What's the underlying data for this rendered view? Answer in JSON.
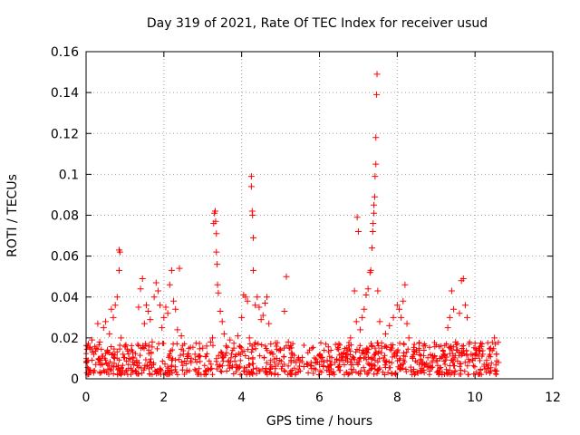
{
  "chart_data": {
    "type": "scatter",
    "title": "Day 319 of 2021, Rate Of TEC Index for receiver usud",
    "xlabel": "GPS time / hours",
    "ylabel": "ROTI / TECUs",
    "xlim": [
      0,
      12
    ],
    "ylim": [
      0,
      0.16
    ],
    "xticks": [
      "0",
      "2",
      "4",
      "6",
      "8",
      "10",
      "12"
    ],
    "yticks": [
      "0",
      "0.02",
      "0.04",
      "0.06",
      "0.08",
      "0.1",
      "0.12",
      "0.14",
      "0.16"
    ],
    "grid": true,
    "marker": "+",
    "color": "#ff0000",
    "series": [
      {
        "name": "ROTI",
        "points": [
          [
            0.05,
            0.009
          ],
          [
            0.1,
            0.015
          ],
          [
            0.15,
            0.019
          ],
          [
            0.2,
            0.012
          ],
          [
            0.25,
            0.007
          ],
          [
            0.3,
            0.027
          ],
          [
            0.35,
            0.018
          ],
          [
            0.4,
            0.011
          ],
          [
            0.45,
            0.025
          ],
          [
            0.5,
            0.028
          ],
          [
            0.55,
            0.014
          ],
          [
            0.6,
            0.022
          ],
          [
            0.65,
            0.034
          ],
          [
            0.7,
            0.03
          ],
          [
            0.75,
            0.036
          ],
          [
            0.8,
            0.04
          ],
          [
            0.85,
            0.063
          ],
          [
            0.87,
            0.062
          ],
          [
            0.85,
            0.053
          ],
          [
            0.9,
            0.02
          ],
          [
            0.95,
            0.012
          ],
          [
            1.0,
            0.016
          ],
          [
            1.1,
            0.01
          ],
          [
            1.2,
            0.013
          ],
          [
            1.3,
            0.009
          ],
          [
            1.35,
            0.035
          ],
          [
            1.4,
            0.044
          ],
          [
            1.45,
            0.049
          ],
          [
            1.5,
            0.027
          ],
          [
            1.55,
            0.036
          ],
          [
            1.6,
            0.033
          ],
          [
            1.65,
            0.029
          ],
          [
            1.7,
            0.018
          ],
          [
            1.75,
            0.04
          ],
          [
            1.8,
            0.047
          ],
          [
            1.85,
            0.043
          ],
          [
            1.9,
            0.036
          ],
          [
            1.95,
            0.025
          ],
          [
            2.0,
            0.03
          ],
          [
            2.05,
            0.035
          ],
          [
            2.1,
            0.032
          ],
          [
            2.15,
            0.046
          ],
          [
            2.2,
            0.053
          ],
          [
            2.25,
            0.038
          ],
          [
            2.3,
            0.034
          ],
          [
            2.35,
            0.024
          ],
          [
            2.4,
            0.054
          ],
          [
            2.45,
            0.021
          ],
          [
            2.5,
            0.012
          ],
          [
            2.6,
            0.01
          ],
          [
            2.7,
            0.008
          ],
          [
            2.8,
            0.012
          ],
          [
            2.9,
            0.011
          ],
          [
            3.0,
            0.015
          ],
          [
            3.1,
            0.016
          ],
          [
            3.2,
            0.018
          ],
          [
            3.25,
            0.02
          ],
          [
            3.28,
            0.076
          ],
          [
            3.3,
            0.081
          ],
          [
            3.32,
            0.082
          ],
          [
            3.33,
            0.077
          ],
          [
            3.35,
            0.071
          ],
          [
            3.35,
            0.062
          ],
          [
            3.37,
            0.056
          ],
          [
            3.38,
            0.046
          ],
          [
            3.4,
            0.042
          ],
          [
            3.45,
            0.033
          ],
          [
            3.5,
            0.028
          ],
          [
            3.55,
            0.022
          ],
          [
            3.6,
            0.016
          ],
          [
            3.7,
            0.019
          ],
          [
            3.8,
            0.015
          ],
          [
            3.9,
            0.021
          ],
          [
            4.0,
            0.03
          ],
          [
            4.05,
            0.041
          ],
          [
            4.1,
            0.04
          ],
          [
            4.15,
            0.038
          ],
          [
            4.2,
            0.02
          ],
          [
            4.25,
            0.099
          ],
          [
            4.25,
            0.094
          ],
          [
            4.27,
            0.082
          ],
          [
            4.28,
            0.08
          ],
          [
            4.3,
            0.069
          ],
          [
            4.3,
            0.053
          ],
          [
            4.35,
            0.036
          ],
          [
            4.4,
            0.04
          ],
          [
            4.45,
            0.035
          ],
          [
            4.5,
            0.029
          ],
          [
            4.55,
            0.031
          ],
          [
            4.6,
            0.037
          ],
          [
            4.65,
            0.04
          ],
          [
            4.7,
            0.027
          ],
          [
            4.75,
            0.017
          ],
          [
            4.8,
            0.012
          ],
          [
            4.9,
            0.01
          ],
          [
            5.0,
            0.014
          ],
          [
            5.1,
            0.033
          ],
          [
            5.15,
            0.05
          ],
          [
            5.2,
            0.018
          ],
          [
            5.3,
            0.012
          ],
          [
            5.4,
            0.008
          ],
          [
            5.5,
            0.009
          ],
          [
            5.6,
            0.006
          ],
          [
            5.7,
            0.007
          ],
          [
            5.8,
            0.005
          ],
          [
            5.9,
            0.008
          ],
          [
            6.0,
            0.007
          ],
          [
            6.1,
            0.006
          ],
          [
            6.2,
            0.009
          ],
          [
            6.3,
            0.007
          ],
          [
            6.4,
            0.008
          ],
          [
            6.5,
            0.006
          ],
          [
            6.6,
            0.009
          ],
          [
            6.7,
            0.012
          ],
          [
            6.8,
            0.02
          ],
          [
            6.9,
            0.043
          ],
          [
            6.95,
            0.028
          ],
          [
            6.97,
            0.079
          ],
          [
            7.0,
            0.072
          ],
          [
            7.05,
            0.024
          ],
          [
            7.1,
            0.03
          ],
          [
            7.15,
            0.034
          ],
          [
            7.2,
            0.041
          ],
          [
            7.25,
            0.044
          ],
          [
            7.3,
            0.052
          ],
          [
            7.32,
            0.053
          ],
          [
            7.35,
            0.064
          ],
          [
            7.37,
            0.072
          ],
          [
            7.38,
            0.076
          ],
          [
            7.4,
            0.081
          ],
          [
            7.4,
            0.085
          ],
          [
            7.42,
            0.089
          ],
          [
            7.43,
            0.099
          ],
          [
            7.45,
            0.105
          ],
          [
            7.45,
            0.118
          ],
          [
            7.47,
            0.139
          ],
          [
            7.48,
            0.149
          ],
          [
            7.5,
            0.043
          ],
          [
            7.55,
            0.028
          ],
          [
            7.6,
            0.015
          ],
          [
            7.7,
            0.022
          ],
          [
            7.8,
            0.026
          ],
          [
            7.9,
            0.03
          ],
          [
            8.0,
            0.036
          ],
          [
            8.05,
            0.034
          ],
          [
            8.1,
            0.03
          ],
          [
            8.15,
            0.038
          ],
          [
            8.2,
            0.046
          ],
          [
            8.25,
            0.027
          ],
          [
            8.3,
            0.02
          ],
          [
            8.4,
            0.01
          ],
          [
            8.5,
            0.013
          ],
          [
            8.6,
            0.009
          ],
          [
            8.7,
            0.007
          ],
          [
            8.8,
            0.006
          ],
          [
            8.9,
            0.008
          ],
          [
            9.0,
            0.009
          ],
          [
            9.1,
            0.01
          ],
          [
            9.2,
            0.012
          ],
          [
            9.3,
            0.025
          ],
          [
            9.35,
            0.03
          ],
          [
            9.4,
            0.043
          ],
          [
            9.45,
            0.034
          ],
          [
            9.5,
            0.018
          ],
          [
            9.55,
            0.014
          ],
          [
            9.6,
            0.032
          ],
          [
            9.65,
            0.048
          ],
          [
            9.7,
            0.049
          ],
          [
            9.75,
            0.036
          ],
          [
            9.8,
            0.03
          ],
          [
            9.85,
            0.017
          ],
          [
            9.9,
            0.012
          ],
          [
            10.0,
            0.01
          ],
          [
            10.1,
            0.014
          ],
          [
            10.2,
            0.012
          ],
          [
            10.3,
            0.009
          ],
          [
            10.4,
            0.015
          ],
          [
            10.5,
            0.02
          ],
          [
            10.55,
            0.012
          ],
          [
            10.6,
            0.008
          ]
        ]
      }
    ],
    "background_band": {
      "x_start": 0,
      "x_end": 10.6,
      "y_min": 0.002,
      "y_max": 0.018
    }
  }
}
